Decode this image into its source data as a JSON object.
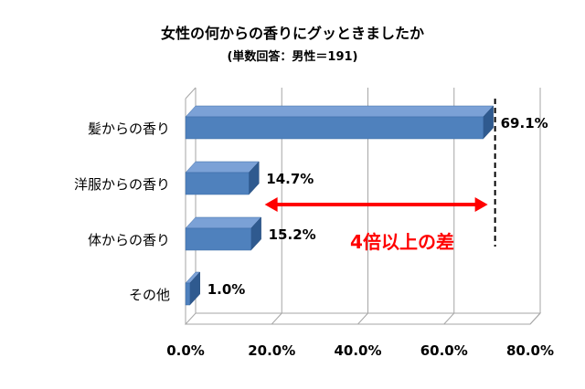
{
  "chart_data": {
    "type": "bar",
    "orientation": "horizontal",
    "title": "女性の何からの香りにグッときましたか",
    "subtitle": "(単数回答：男性＝191)",
    "categories": [
      "髪からの香り",
      "洋服からの香り",
      "体からの香り",
      "その他"
    ],
    "values": [
      69.1,
      14.7,
      15.2,
      1.0
    ],
    "data_labels": [
      "69.1%",
      "14.7%",
      "15.2%",
      "1.0%"
    ],
    "xlim": [
      0,
      80
    ],
    "xticks": [
      "0.0%",
      "20.0%",
      "40.0%",
      "60.0%",
      "80.0%"
    ],
    "xtick_values": [
      0,
      20,
      40,
      60,
      80
    ],
    "annotation": "4倍以上の差",
    "annotation_range": [
      15.2,
      69.1
    ],
    "grid": true,
    "style": "3d",
    "colors": {
      "bar_front": "#4f81bd",
      "bar_top": "#7ba1d6",
      "bar_side": "#2f5a8f",
      "annotation": "#ff0000",
      "grid": "#a6a6a6"
    }
  }
}
